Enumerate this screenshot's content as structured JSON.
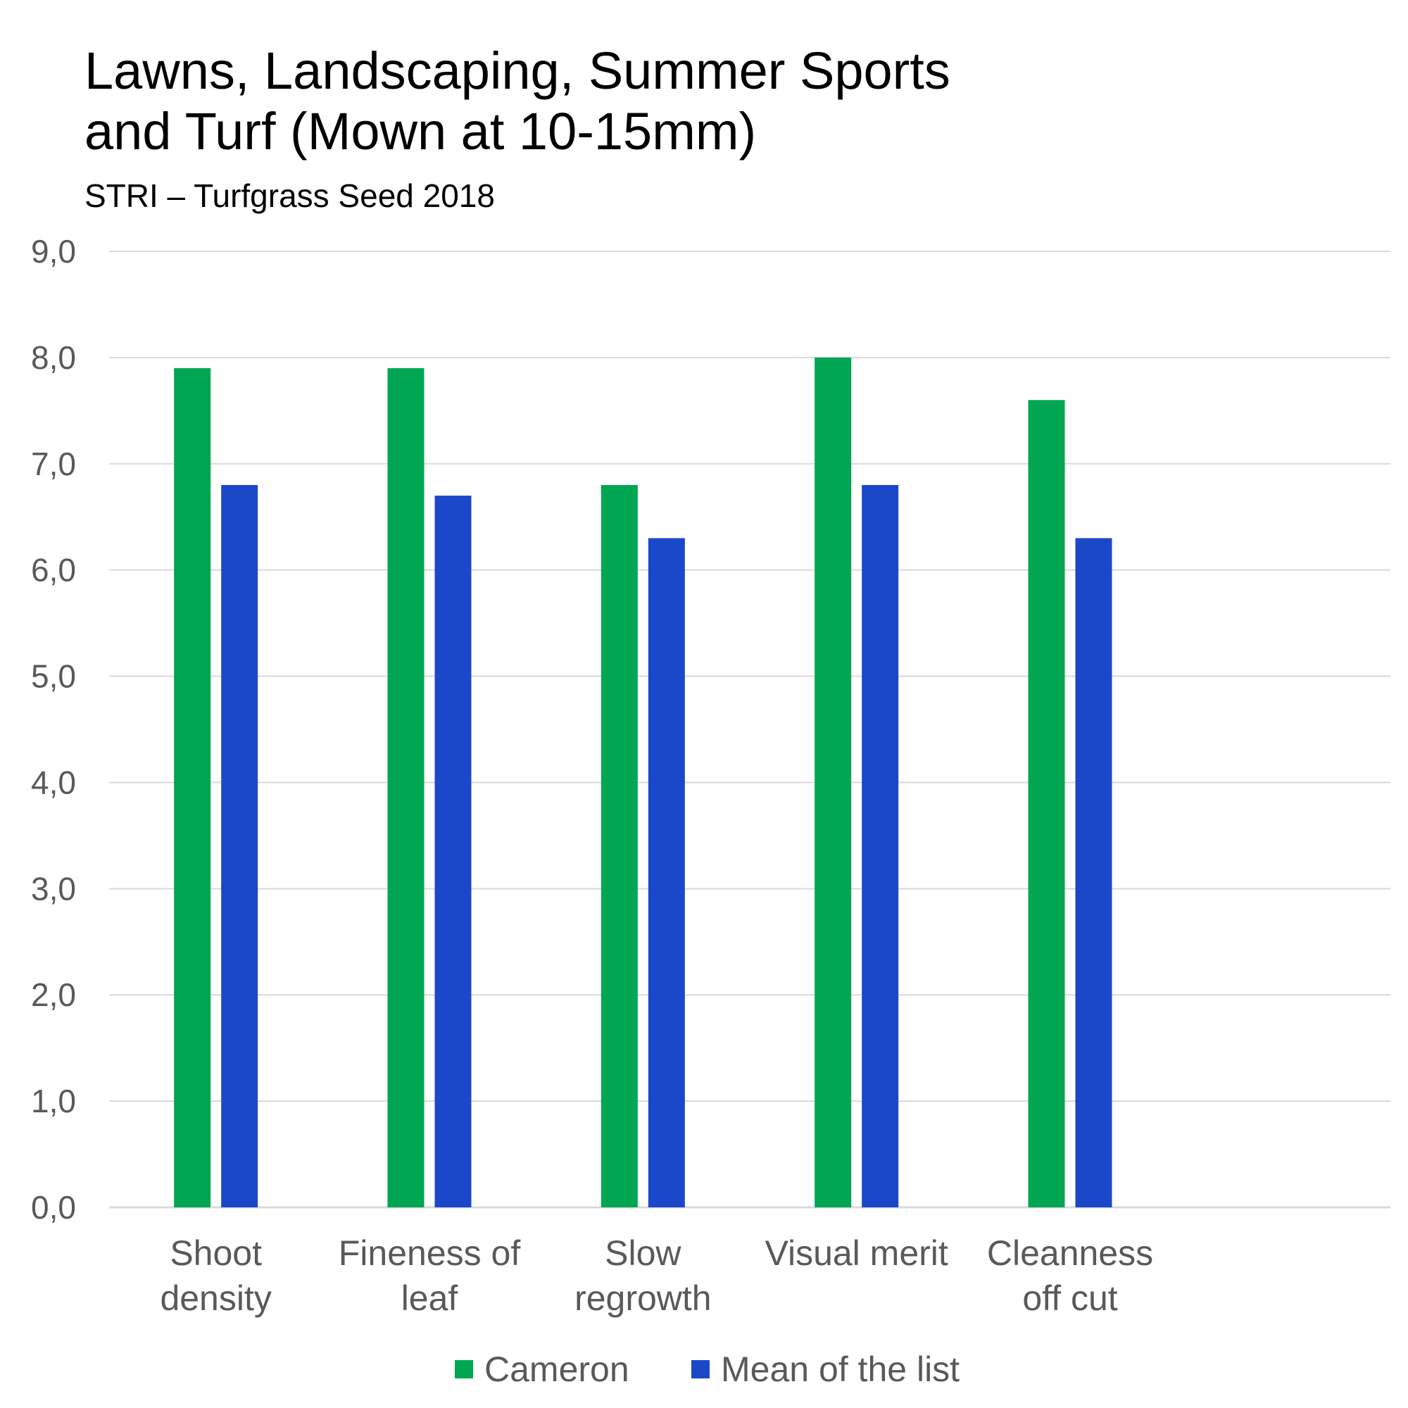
{
  "chart_data": {
    "type": "bar",
    "title": "Lawns, Landscaping, Summer Sports and Turf (Mown at 10-15mm)",
    "title_lines": [
      "Lawns, Landscaping, Summer Sports",
      "and Turf (Mown at 10-15mm)"
    ],
    "subtitle": "STRI – Turfgrass Seed 2018",
    "categories": [
      [
        "Shoot",
        "density"
      ],
      [
        "Fineness of",
        "leaf"
      ],
      [
        "Slow",
        "regrowth"
      ],
      [
        "Visual merit"
      ],
      [
        "Cleanness",
        "off cut"
      ]
    ],
    "series": [
      {
        "name": "Cameron",
        "color": "#00A651",
        "values": [
          7.9,
          7.9,
          6.8,
          8.0,
          7.6
        ]
      },
      {
        "name": "Mean of the list",
        "color": "#1B48C9",
        "values": [
          6.8,
          6.7,
          6.3,
          6.8,
          6.3
        ]
      }
    ],
    "ylim": [
      0,
      9
    ],
    "yticks": [
      "0,0",
      "1,0",
      "2,0",
      "3,0",
      "4,0",
      "5,0",
      "6,0",
      "7,0",
      "8,0",
      "9,0"
    ],
    "grid": true,
    "legend": "bottom",
    "colors": {
      "gridline": "#D9D9D9",
      "text": "#595959"
    }
  }
}
